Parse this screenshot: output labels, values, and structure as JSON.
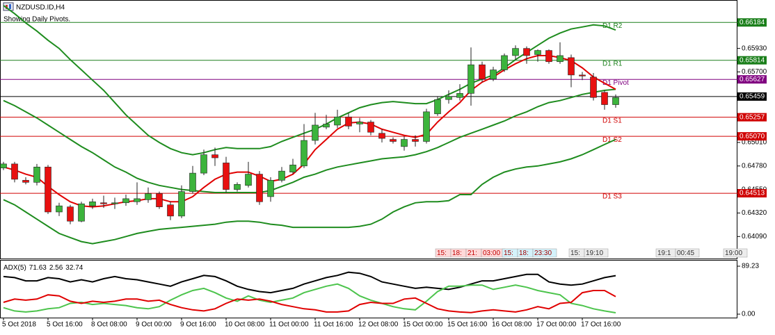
{
  "window_title": "NZDUSD.ID,H4",
  "pivots_note": "Showing Daily Pivots.",
  "chart_data": [
    {
      "type": "candlestick",
      "categories": [
        "5 Oct 2018",
        null,
        null,
        null,
        "5 Oct 16:00",
        null,
        null,
        null,
        "8 Oct 08:00",
        null,
        null,
        null,
        "9 Oct 00:00",
        null,
        null,
        null,
        "9 Oct 16:00",
        null,
        null,
        null,
        "10 Oct 08:00",
        null,
        null,
        null,
        "11 Oct 00:00",
        null,
        null,
        null,
        "11 Oct 16:00",
        null,
        null,
        null,
        "12 Oct 08:00",
        null,
        null,
        null,
        "15 Oct 00:00",
        null,
        null,
        null,
        "15 Oct 16:00",
        null,
        null,
        null,
        "16 Oct 08:00",
        null,
        null,
        null,
        "17 Oct 00:00",
        null,
        null,
        null,
        "17 Oct 16:00",
        null,
        null,
        null
      ],
      "open": [
        0.6476,
        0.648,
        0.6464,
        0.6462,
        0.6477,
        0.6433,
        0.6438,
        0.6424,
        0.6439,
        0.6442,
        0.6441,
        0.6442,
        0.6443,
        0.6445,
        0.6451,
        0.644,
        0.6429,
        0.6453,
        0.6471,
        0.6489,
        0.6481,
        0.6455,
        0.6459,
        0.647,
        0.6448,
        0.6464,
        0.6472,
        0.6478,
        0.6503,
        0.6516,
        0.6518,
        0.6526,
        0.6519,
        0.6521,
        0.651,
        0.6504,
        0.6497,
        0.6504,
        0.6502,
        0.6529,
        0.6543,
        0.6545,
        0.6549,
        0.6577,
        0.6563,
        0.6572,
        0.6586,
        0.6593,
        0.6587,
        0.6591,
        0.658,
        0.6584,
        0.6567,
        0.6565,
        0.655,
        0.6538
      ],
      "high": [
        0.6482,
        0.6482,
        0.6467,
        0.648,
        0.6479,
        0.6442,
        0.644,
        0.6443,
        0.6446,
        0.6449,
        0.6447,
        0.645,
        0.6462,
        0.6457,
        0.6453,
        0.6443,
        0.6459,
        0.6478,
        0.6494,
        0.6496,
        0.6487,
        0.6462,
        0.6482,
        0.6473,
        0.6467,
        0.6477,
        0.6485,
        0.6519,
        0.653,
        0.6528,
        0.6533,
        0.653,
        0.6525,
        0.6523,
        0.6514,
        0.6506,
        0.6507,
        0.6508,
        0.6534,
        0.6546,
        0.6552,
        0.6558,
        0.6594,
        0.658,
        0.6575,
        0.6588,
        0.6596,
        0.6595,
        0.6592,
        0.6592,
        0.6599,
        0.6587,
        0.657,
        0.6569,
        0.6552,
        0.6548
      ],
      "low": [
        0.6474,
        0.6462,
        0.646,
        0.6459,
        0.6431,
        0.6429,
        0.6421,
        0.6423,
        0.6436,
        0.6437,
        0.6436,
        0.6439,
        0.644,
        0.6442,
        0.6436,
        0.6425,
        0.6427,
        0.6451,
        0.6469,
        0.6478,
        0.6452,
        0.6453,
        0.6457,
        0.644,
        0.6443,
        0.6462,
        0.647,
        0.6476,
        0.6499,
        0.6514,
        0.6515,
        0.6514,
        0.6511,
        0.6508,
        0.6501,
        0.65,
        0.6493,
        0.6497,
        0.65,
        0.6527,
        0.6539,
        0.6542,
        0.6537,
        0.656,
        0.6561,
        0.657,
        0.6582,
        0.6578,
        0.658,
        0.6578,
        0.6578,
        0.6555,
        0.6562,
        0.6542,
        0.6533,
        0.6535
      ],
      "close": [
        0.648,
        0.6465,
        0.6462,
        0.6477,
        0.6433,
        0.6439,
        0.6424,
        0.6441,
        0.6443,
        0.6441,
        0.6442,
        0.6446,
        0.6446,
        0.6451,
        0.6438,
        0.6429,
        0.6453,
        0.6471,
        0.6489,
        0.6486,
        0.6455,
        0.646,
        0.647,
        0.6443,
        0.6464,
        0.6473,
        0.6479,
        0.6503,
        0.6518,
        0.6519,
        0.6526,
        0.6517,
        0.6521,
        0.6511,
        0.6505,
        0.6502,
        0.6504,
        0.6502,
        0.6531,
        0.6543,
        0.6546,
        0.6549,
        0.6577,
        0.6563,
        0.6572,
        0.6586,
        0.6593,
        0.6586,
        0.6591,
        0.658,
        0.6586,
        0.6567,
        0.6566,
        0.6545,
        0.6538,
        0.6545
      ],
      "up_color": "#3cb43c",
      "down_color": "#e81010",
      "series": [
        {
          "color": "#1e8c1e",
          "values": [
            0.6635,
            0.6627,
            0.6618,
            0.661,
            0.6601,
            0.6593,
            0.6582,
            0.6572,
            0.6562,
            0.6552,
            0.654,
            0.6528,
            0.6518,
            0.6508,
            0.6501,
            0.6495,
            0.6491,
            0.6489,
            0.6491,
            0.6494,
            0.6496,
            0.6495,
            0.6495,
            0.6495,
            0.6497,
            0.6502,
            0.6506,
            0.651,
            0.6514,
            0.6519,
            0.6525,
            0.653,
            0.6535,
            0.6538,
            0.654,
            0.6541,
            0.654,
            0.6539,
            0.6539,
            0.6543,
            0.6548,
            0.6553,
            0.6559,
            0.6563,
            0.6567,
            0.6574,
            0.6582,
            0.6589,
            0.6596,
            0.6603,
            0.6608,
            0.6612,
            0.6614,
            0.6616,
            0.6615,
            0.6611
          ]
        },
        {
          "color": "#1e8c1e",
          "values": [
            0.6542,
            0.6537,
            0.6531,
            0.6525,
            0.6518,
            0.6511,
            0.6504,
            0.6497,
            0.6491,
            0.6484,
            0.6477,
            0.6472,
            0.6466,
            0.6462,
            0.6459,
            0.6457,
            0.6455,
            0.6454,
            0.6453,
            0.6452,
            0.6452,
            0.6452,
            0.6452,
            0.6452,
            0.6454,
            0.6458,
            0.6462,
            0.6467,
            0.647,
            0.6474,
            0.6477,
            0.6479,
            0.6481,
            0.6483,
            0.6485,
            0.6486,
            0.6487,
            0.6489,
            0.6492,
            0.6496,
            0.6501,
            0.6506,
            0.651,
            0.6514,
            0.6518,
            0.6522,
            0.6527,
            0.6531,
            0.6536,
            0.654,
            0.6542,
            0.6545,
            0.6548,
            0.655,
            0.6552,
            0.6553
          ]
        },
        {
          "color": "#1e8c1e",
          "values": [
            0.6445,
            0.644,
            0.6433,
            0.6426,
            0.6419,
            0.6412,
            0.6408,
            0.6404,
            0.6402,
            0.6404,
            0.6406,
            0.6409,
            0.6412,
            0.6414,
            0.6416,
            0.6417,
            0.6418,
            0.6419,
            0.642,
            0.6421,
            0.6423,
            0.6424,
            0.6424,
            0.6423,
            0.6421,
            0.642,
            0.6418,
            0.6418,
            0.6418,
            0.6418,
            0.6418,
            0.6418,
            0.6419,
            0.6421,
            0.6426,
            0.6433,
            0.6438,
            0.6442,
            0.6443,
            0.6443,
            0.6444,
            0.645,
            0.645,
            0.646,
            0.6467,
            0.6472,
            0.6475,
            0.6477,
            0.6478,
            0.648,
            0.6482,
            0.6485,
            0.6489,
            0.6494,
            0.6499,
            0.6504
          ]
        },
        {
          "color": "#e00000",
          "values": [
            0.6477,
            0.6474,
            0.647,
            0.6467,
            0.6458,
            0.645,
            0.6443,
            0.6439,
            0.6438,
            0.6439,
            0.6441,
            0.6443,
            0.6444,
            0.6446,
            0.6446,
            0.6443,
            0.6443,
            0.6448,
            0.6457,
            0.6465,
            0.647,
            0.6472,
            0.6472,
            0.6468,
            0.6463,
            0.6465,
            0.647,
            0.648,
            0.6494,
            0.6504,
            0.6514,
            0.652,
            0.6521,
            0.6519,
            0.6514,
            0.6511,
            0.6508,
            0.6506,
            0.6509,
            0.6521,
            0.6531,
            0.654,
            0.6552,
            0.656,
            0.6565,
            0.6572,
            0.6578,
            0.6583,
            0.6586,
            0.6586,
            0.6584,
            0.6581,
            0.6574,
            0.6565,
            0.6559,
            0.6553
          ]
        }
      ],
      "levels": [
        {
          "name": "D1 R2",
          "value": 0.66184,
          "color": "#1a7f1a"
        },
        {
          "name": "D1 R1",
          "value": 0.65814,
          "color": "#1a7f1a"
        },
        {
          "name": "D1 Pivot",
          "value": 0.65627,
          "color": "#800080"
        },
        {
          "value": 0.65459,
          "color": "#000000"
        },
        {
          "name": "D1 S1",
          "value": 0.65257,
          "color": "#d00000"
        },
        {
          "name": "D1 S2",
          "value": 0.6507,
          "value_label": "0.65070",
          "color": "#d00000"
        },
        {
          "name": "D1 S3",
          "value": 0.64513,
          "color": "#d00000"
        }
      ],
      "ylim": [
        0.6399,
        0.6639
      ],
      "yticks": [
        {
          "value": 0.6409,
          "label": "0.64090"
        },
        {
          "value": 0.6432,
          "label": "0.64320"
        },
        {
          "value": 0.6455,
          "label": "0.64550"
        },
        {
          "value": 0.6478,
          "label": "0.64780"
        },
        {
          "value": 0.6501,
          "label": "0.65010"
        },
        {
          "value": 0.657,
          "label": "0.65700"
        },
        {
          "value": 0.6593,
          "label": "0.65930"
        }
      ],
      "grid": false
    },
    {
      "type": "line",
      "title": "ADX(5)",
      "ylim": [
        0,
        89.23
      ],
      "yticks": [
        {
          "value": 0,
          "label": "0.00"
        },
        89.23
      ],
      "series": [
        {
          "color": "#000000",
          "values": [
            70,
            68,
            62,
            62,
            68,
            66,
            60,
            64,
            60,
            66,
            70,
            66,
            64,
            60,
            56,
            52,
            60,
            66,
            72,
            70,
            62,
            52,
            46,
            42,
            40,
            44,
            48,
            56,
            62,
            68,
            72,
            78,
            76,
            70,
            60,
            56,
            52,
            48,
            50,
            48,
            46,
            50,
            56,
            62,
            62,
            66,
            70,
            74,
            74,
            60,
            56,
            54,
            56,
            62,
            68,
            71.63
          ]
        },
        {
          "color": "#4cc44c",
          "values": [
            12,
            6,
            4,
            6,
            10,
            12,
            20,
            22,
            18,
            20,
            18,
            16,
            12,
            10,
            14,
            26,
            36,
            44,
            48,
            40,
            30,
            24,
            34,
            26,
            22,
            26,
            30,
            40,
            46,
            52,
            56,
            48,
            34,
            26,
            20,
            14,
            10,
            8,
            24,
            42,
            52,
            52,
            54,
            54,
            46,
            50,
            54,
            50,
            44,
            40,
            36,
            20,
            16,
            10,
            6,
            2.56
          ]
        },
        {
          "color": "#e00000",
          "values": [
            22,
            28,
            26,
            28,
            36,
            34,
            24,
            20,
            24,
            22,
            24,
            28,
            28,
            24,
            26,
            18,
            12,
            8,
            6,
            10,
            20,
            28,
            26,
            28,
            24,
            18,
            14,
            10,
            8,
            4,
            4,
            6,
            18,
            22,
            20,
            20,
            28,
            30,
            20,
            10,
            6,
            4,
            3,
            6,
            8,
            6,
            4,
            8,
            14,
            10,
            20,
            22,
            40,
            44,
            44,
            32.74
          ]
        }
      ]
    }
  ],
  "time_boxes": [
    {
      "texts": [
        "15:",
        "18:",
        "21:",
        "03:00"
      ],
      "color": "#c00000",
      "background": "#ffd9d9"
    },
    {
      "texts": [
        "15:",
        "18:",
        "23:30"
      ],
      "color": "#a00000",
      "background": "#d4f2fb"
    },
    {
      "texts": [
        "15:",
        "19:10"
      ],
      "color": "#333333",
      "background": "#ececec"
    },
    {
      "texts": [
        "19:1",
        "00:45"
      ],
      "color": "#333333",
      "background": "#ececec"
    },
    {
      "texts": [
        "19:00"
      ],
      "color": "#333333",
      "background": "#ececec"
    }
  ]
}
